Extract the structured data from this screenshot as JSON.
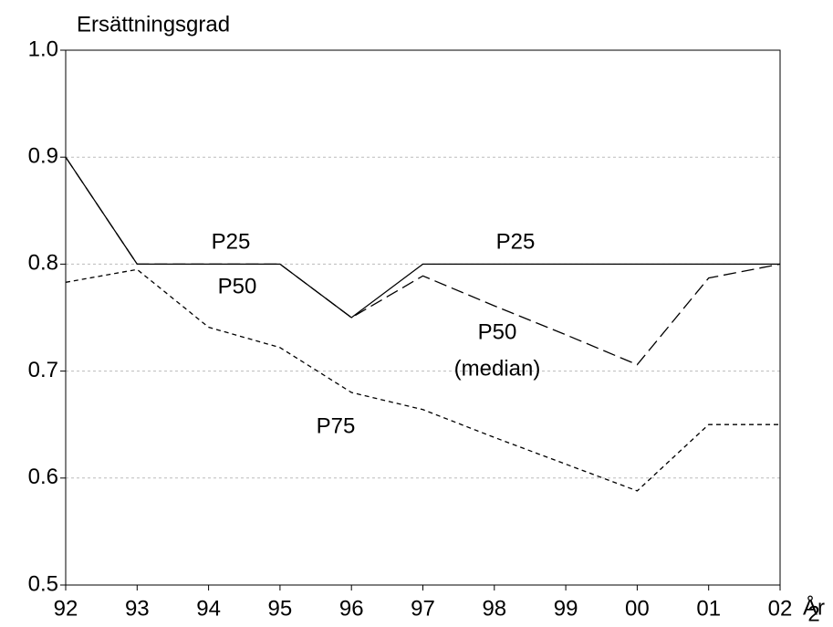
{
  "chart_data": {
    "type": "line",
    "title": "Ersättningsgrad",
    "x_label": "År",
    "categories": [
      "92",
      "93",
      "94",
      "95",
      "96",
      "97",
      "98",
      "99",
      "00",
      "01",
      "02"
    ],
    "series": [
      {
        "name": "P25",
        "color": "#000000",
        "dash": "none",
        "values": [
          0.9,
          0.8,
          0.8,
          0.8,
          0.75,
          0.8,
          0.8,
          0.8,
          0.8,
          0.8,
          0.8
        ]
      },
      {
        "name": "P50",
        "color": "#000000",
        "dash": "14 6",
        "values": [
          0.9,
          0.8,
          0.8,
          0.8,
          0.75,
          0.789,
          0.761,
          0.734,
          0.706,
          0.787,
          0.8
        ]
      },
      {
        "name": "P75",
        "color": "#000000",
        "dash": "5 4",
        "values": [
          0.783,
          0.795,
          0.741,
          0.722,
          0.68,
          0.664,
          0.638,
          0.613,
          0.588,
          0.65,
          0.65
        ]
      }
    ],
    "annotations": [
      "P25",
      "P25",
      "P50",
      "P50",
      "(median)",
      "P75",
      "2"
    ],
    "ylim": [
      0.5,
      1.0
    ],
    "yticks": [
      0.5,
      0.6,
      0.7,
      0.8,
      0.9,
      {
        "value": 1.0,
        "label": "1.0"
      }
    ],
    "grid": true
  }
}
